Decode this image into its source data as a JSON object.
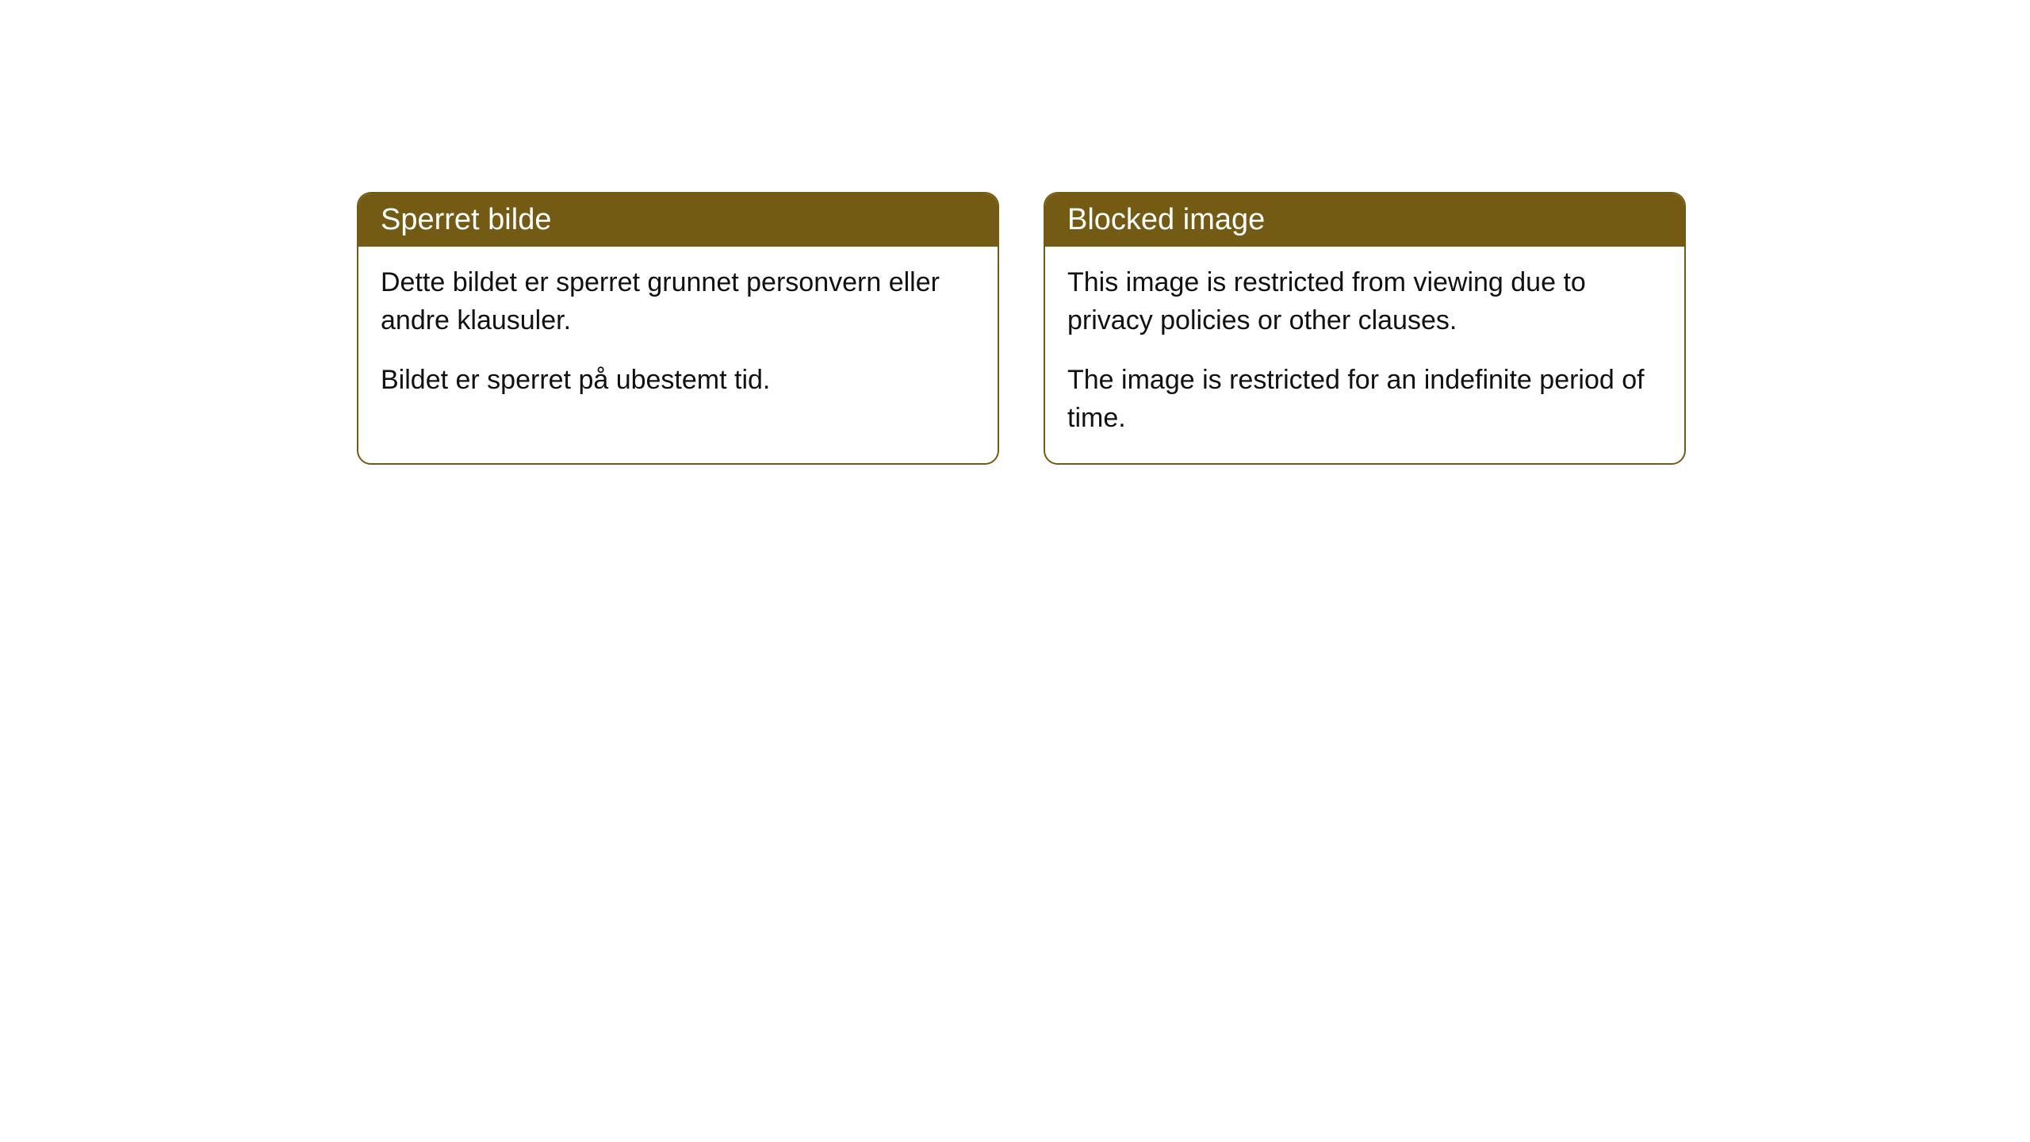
{
  "cards": [
    {
      "title": "Sperret bilde",
      "paragraph1": "Dette bildet er sperret grunnet personvern eller andre klausuler.",
      "paragraph2": "Bildet er sperret på ubestemt tid."
    },
    {
      "title": "Blocked image",
      "paragraph1": "This image is restricted from viewing due to privacy policies or other clauses.",
      "paragraph2": "The image is restricted for an indefinite period of time."
    }
  ],
  "styles": {
    "header_bg_color": "#745b13",
    "header_text_color": "#ffffff",
    "border_color": "#745b13",
    "card_bg_color": "#ffffff",
    "body_text_color": "#111111",
    "border_radius": 18,
    "header_fontsize": 38,
    "body_fontsize": 34
  }
}
